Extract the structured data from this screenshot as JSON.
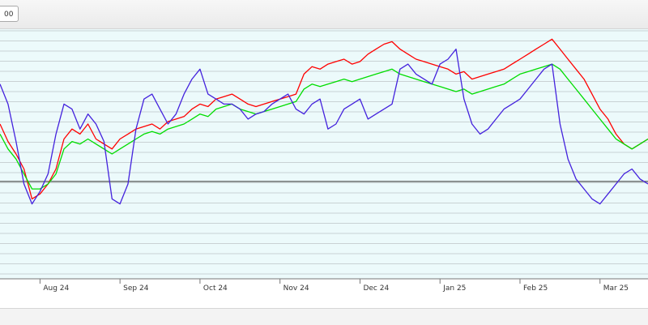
{
  "toolbar": {
    "range_button_label": "00"
  },
  "chart_data": {
    "type": "line",
    "title": "",
    "xlabel": "",
    "ylabel": "",
    "x_tick_labels": [
      "Aug 24",
      "Sep 24",
      "Oct 24",
      "Nov 24",
      "Dec 24",
      "Jan 25",
      "Feb 25",
      "Mar 25"
    ],
    "x_tick_positions": [
      0.5,
      1.5,
      2.5,
      3.5,
      4.5,
      5.5,
      6.5,
      7.5
    ],
    "xlim": [
      0,
      8.1
    ],
    "ylim": [
      0,
      100
    ],
    "reference_line": 39,
    "grid": true,
    "background_color": "#ecfafb",
    "series": [
      {
        "color": "#ff0000",
        "x": [
          0,
          0.1,
          0.2,
          0.3,
          0.4,
          0.5,
          0.6,
          0.7,
          0.8,
          0.9,
          1.0,
          1.1,
          1.2,
          1.3,
          1.4,
          1.5,
          1.6,
          1.7,
          1.8,
          1.9,
          2.0,
          2.1,
          2.2,
          2.3,
          2.4,
          2.5,
          2.6,
          2.7,
          2.8,
          2.9,
          3.0,
          3.1,
          3.2,
          3.3,
          3.4,
          3.5,
          3.6,
          3.7,
          3.8,
          3.9,
          4.0,
          4.1,
          4.2,
          4.3,
          4.4,
          4.5,
          4.6,
          4.7,
          4.8,
          4.9,
          5.0,
          5.1,
          5.2,
          5.3,
          5.4,
          5.5,
          5.6,
          5.7,
          5.8,
          5.9,
          6.0,
          6.1,
          6.2,
          6.3,
          6.4,
          6.5,
          6.6,
          6.7,
          6.8,
          6.9,
          7.0,
          7.1,
          7.2,
          7.3,
          7.4,
          7.5,
          7.6,
          7.7,
          7.8,
          7.9,
          8.0,
          8.1
        ],
        "values": [
          62,
          55,
          50,
          44,
          32,
          34,
          38,
          44,
          56,
          60,
          58,
          62,
          56,
          54,
          52,
          56,
          58,
          60,
          61,
          62,
          60,
          63,
          64,
          65,
          68,
          70,
          69,
          72,
          73,
          74,
          72,
          70,
          69,
          70,
          71,
          72,
          73,
          74,
          82,
          85,
          84,
          86,
          87,
          88,
          86,
          87,
          90,
          92,
          94,
          95,
          92,
          90,
          88,
          87,
          86,
          85,
          84,
          82,
          83,
          80,
          81,
          82,
          83,
          84,
          86,
          88,
          90,
          92,
          94,
          96,
          92,
          88,
          84,
          80,
          74,
          68,
          64,
          58,
          54,
          52,
          54,
          56
        ]
      },
      {
        "color": "#00dd00",
        "x": [
          0,
          0.1,
          0.2,
          0.3,
          0.4,
          0.5,
          0.6,
          0.7,
          0.8,
          0.9,
          1.0,
          1.1,
          1.2,
          1.3,
          1.4,
          1.5,
          1.6,
          1.7,
          1.8,
          1.9,
          2.0,
          2.1,
          2.2,
          2.3,
          2.4,
          2.5,
          2.6,
          2.7,
          2.8,
          2.9,
          3.0,
          3.1,
          3.2,
          3.3,
          3.4,
          3.5,
          3.6,
          3.7,
          3.8,
          3.9,
          4.0,
          4.1,
          4.2,
          4.3,
          4.4,
          4.5,
          4.6,
          4.7,
          4.8,
          4.9,
          5.0,
          5.1,
          5.2,
          5.3,
          5.4,
          5.5,
          5.6,
          5.7,
          5.8,
          5.9,
          6.0,
          6.1,
          6.2,
          6.3,
          6.4,
          6.5,
          6.6,
          6.7,
          6.8,
          6.9,
          7.0,
          7.1,
          7.2,
          7.3,
          7.4,
          7.5,
          7.6,
          7.7,
          7.8,
          7.9,
          8.0,
          8.1
        ],
        "values": [
          58,
          52,
          48,
          42,
          36,
          36,
          38,
          42,
          52,
          55,
          54,
          56,
          54,
          52,
          50,
          52,
          54,
          56,
          58,
          59,
          58,
          60,
          61,
          62,
          64,
          66,
          65,
          68,
          69,
          70,
          68,
          67,
          66,
          67,
          68,
          69,
          70,
          71,
          76,
          78,
          77,
          78,
          79,
          80,
          79,
          80,
          81,
          82,
          83,
          84,
          82,
          81,
          80,
          79,
          78,
          77,
          76,
          75,
          76,
          74,
          75,
          76,
          77,
          78,
          80,
          82,
          83,
          84,
          85,
          86,
          84,
          80,
          76,
          72,
          68,
          64,
          60,
          56,
          54,
          52,
          54,
          56
        ]
      },
      {
        "color": "#4422dd",
        "x": [
          0,
          0.1,
          0.2,
          0.3,
          0.4,
          0.5,
          0.6,
          0.7,
          0.8,
          0.9,
          1.0,
          1.1,
          1.2,
          1.3,
          1.4,
          1.5,
          1.6,
          1.7,
          1.8,
          1.9,
          2.0,
          2.1,
          2.2,
          2.3,
          2.4,
          2.5,
          2.6,
          2.7,
          2.8,
          2.9,
          3.0,
          3.1,
          3.2,
          3.3,
          3.4,
          3.5,
          3.6,
          3.7,
          3.8,
          3.9,
          4.0,
          4.1,
          4.2,
          4.3,
          4.4,
          4.5,
          4.6,
          4.7,
          4.8,
          4.9,
          5.0,
          5.1,
          5.2,
          5.3,
          5.4,
          5.5,
          5.6,
          5.7,
          5.8,
          5.9,
          6.0,
          6.1,
          6.2,
          6.3,
          6.4,
          6.5,
          6.6,
          6.7,
          6.8,
          6.9,
          7.0,
          7.1,
          7.2,
          7.3,
          7.4,
          7.5,
          7.6,
          7.7,
          7.8,
          7.9,
          8.0,
          8.1
        ],
        "values": [
          78,
          70,
          55,
          38,
          30,
          35,
          42,
          58,
          70,
          68,
          60,
          66,
          62,
          55,
          32,
          30,
          38,
          60,
          72,
          74,
          68,
          62,
          66,
          74,
          80,
          84,
          74,
          72,
          70,
          70,
          68,
          64,
          66,
          67,
          70,
          72,
          74,
          68,
          66,
          70,
          72,
          60,
          62,
          68,
          70,
          72,
          64,
          66,
          68,
          70,
          84,
          86,
          82,
          80,
          78,
          86,
          88,
          92,
          72,
          62,
          58,
          60,
          64,
          68,
          70,
          72,
          76,
          80,
          84,
          86,
          62,
          48,
          40,
          36,
          32,
          30,
          34,
          38,
          42,
          44,
          40,
          38
        ]
      }
    ]
  }
}
